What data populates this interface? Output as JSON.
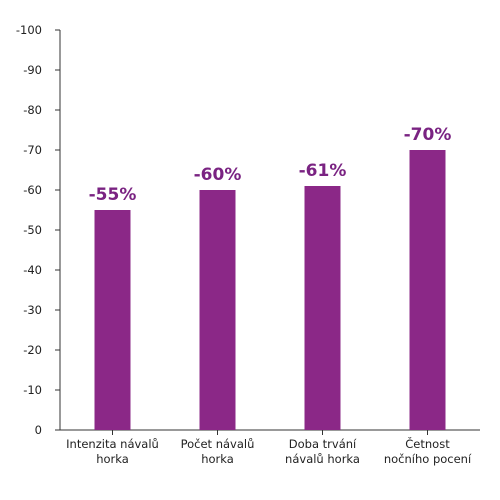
{
  "chart_data": {
    "type": "bar",
    "categories": [
      [
        "Intenzita návalů",
        "horka"
      ],
      [
        "Počet návalů",
        "horka"
      ],
      [
        "Doba trvání",
        "návalů horka"
      ],
      [
        "Četnost",
        "nočního pocení"
      ]
    ],
    "values": [
      -55,
      -60,
      -61,
      -70
    ],
    "data_labels": [
      "-55%",
      "-60%",
      "-61%",
      "-70%"
    ],
    "yticks": [
      0,
      -10,
      -20,
      -30,
      -40,
      -50,
      -60,
      -70,
      -80,
      -90,
      -100
    ],
    "ylim": [
      0,
      -100
    ],
    "y_inverted": true,
    "grid": false,
    "colors": {
      "bar": "#8B2887",
      "label": "#7A2382",
      "axis": "#333333"
    }
  }
}
